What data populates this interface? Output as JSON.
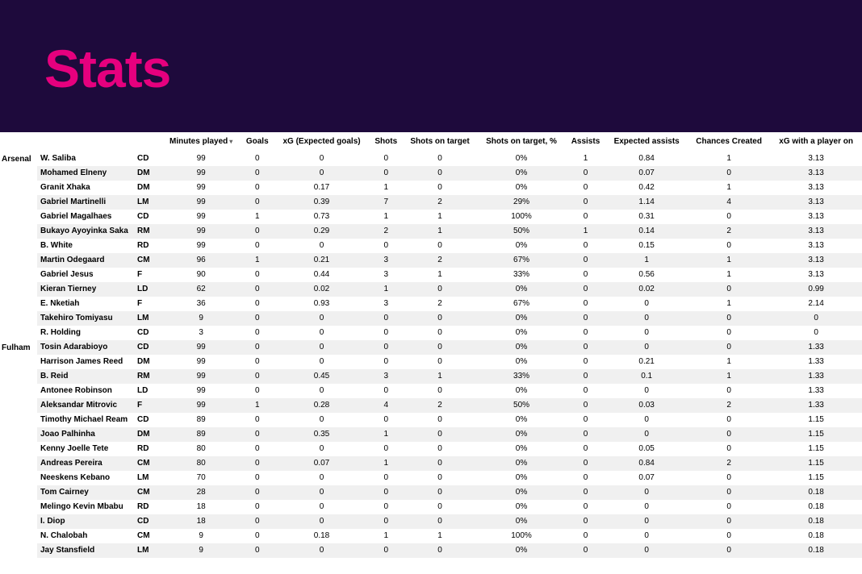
{
  "header": {
    "title": "Stats",
    "bg_color": "#1e0a3c",
    "title_color": "#e6007e"
  },
  "table": {
    "columns": [
      "Minutes played",
      "Goals",
      "xG (Expected goals)",
      "Shots",
      "Shots on target",
      "Shots on target, %",
      "Assists",
      "Expected assists",
      "Chances Created",
      "xG with a player on"
    ],
    "sorted_column_index": 0,
    "team_col_label": "",
    "name_col_label": "",
    "pos_col_label": "",
    "row_alt_bg": "#f0f0f0",
    "row_bg": "#ffffff",
    "groups": [
      {
        "team": "Arsenal",
        "rows": [
          {
            "name": "W. Saliba",
            "pos": "CD",
            "vals": [
              "99",
              "0",
              "0",
              "0",
              "0",
              "0%",
              "1",
              "0.84",
              "1",
              "3.13"
            ]
          },
          {
            "name": "Mohamed Elneny",
            "pos": "DM",
            "vals": [
              "99",
              "0",
              "0",
              "0",
              "0",
              "0%",
              "0",
              "0.07",
              "0",
              "3.13"
            ]
          },
          {
            "name": "Granit Xhaka",
            "pos": "DM",
            "vals": [
              "99",
              "0",
              "0.17",
              "1",
              "0",
              "0%",
              "0",
              "0.42",
              "1",
              "3.13"
            ]
          },
          {
            "name": "Gabriel Martinelli",
            "pos": "LM",
            "vals": [
              "99",
              "0",
              "0.39",
              "7",
              "2",
              "29%",
              "0",
              "1.14",
              "4",
              "3.13"
            ]
          },
          {
            "name": "Gabriel Magalhaes",
            "pos": "CD",
            "vals": [
              "99",
              "1",
              "0.73",
              "1",
              "1",
              "100%",
              "0",
              "0.31",
              "0",
              "3.13"
            ]
          },
          {
            "name": "Bukayo Ayoyinka Saka",
            "pos": "RM",
            "vals": [
              "99",
              "0",
              "0.29",
              "2",
              "1",
              "50%",
              "1",
              "0.14",
              "2",
              "3.13"
            ]
          },
          {
            "name": "B. White",
            "pos": "RD",
            "vals": [
              "99",
              "0",
              "0",
              "0",
              "0",
              "0%",
              "0",
              "0.15",
              "0",
              "3.13"
            ]
          },
          {
            "name": "Martin Odegaard",
            "pos": "CM",
            "vals": [
              "96",
              "1",
              "0.21",
              "3",
              "2",
              "67%",
              "0",
              "1",
              "1",
              "3.13"
            ]
          },
          {
            "name": "Gabriel Jesus",
            "pos": "F",
            "vals": [
              "90",
              "0",
              "0.44",
              "3",
              "1",
              "33%",
              "0",
              "0.56",
              "1",
              "3.13"
            ]
          },
          {
            "name": "Kieran Tierney",
            "pos": "LD",
            "vals": [
              "62",
              "0",
              "0.02",
              "1",
              "0",
              "0%",
              "0",
              "0.02",
              "0",
              "0.99"
            ]
          },
          {
            "name": "E. Nketiah",
            "pos": "F",
            "vals": [
              "36",
              "0",
              "0.93",
              "3",
              "2",
              "67%",
              "0",
              "0",
              "1",
              "2.14"
            ]
          },
          {
            "name": "Takehiro Tomiyasu",
            "pos": "LM",
            "vals": [
              "9",
              "0",
              "0",
              "0",
              "0",
              "0%",
              "0",
              "0",
              "0",
              "0"
            ]
          },
          {
            "name": "R. Holding",
            "pos": "CD",
            "vals": [
              "3",
              "0",
              "0",
              "0",
              "0",
              "0%",
              "0",
              "0",
              "0",
              "0"
            ]
          }
        ]
      },
      {
        "team": "Fulham",
        "rows": [
          {
            "name": "Tosin Adarabioyo",
            "pos": "CD",
            "vals": [
              "99",
              "0",
              "0",
              "0",
              "0",
              "0%",
              "0",
              "0",
              "0",
              "1.33"
            ]
          },
          {
            "name": "Harrison James Reed",
            "pos": "DM",
            "vals": [
              "99",
              "0",
              "0",
              "0",
              "0",
              "0%",
              "0",
              "0.21",
              "1",
              "1.33"
            ]
          },
          {
            "name": "B. Reid",
            "pos": "RM",
            "vals": [
              "99",
              "0",
              "0.45",
              "3",
              "1",
              "33%",
              "0",
              "0.1",
              "1",
              "1.33"
            ]
          },
          {
            "name": "Antonee Robinson",
            "pos": "LD",
            "vals": [
              "99",
              "0",
              "0",
              "0",
              "0",
              "0%",
              "0",
              "0",
              "0",
              "1.33"
            ]
          },
          {
            "name": "Aleksandar Mitrovic",
            "pos": "F",
            "vals": [
              "99",
              "1",
              "0.28",
              "4",
              "2",
              "50%",
              "0",
              "0.03",
              "2",
              "1.33"
            ]
          },
          {
            "name": "Timothy Michael Ream",
            "pos": "CD",
            "vals": [
              "89",
              "0",
              "0",
              "0",
              "0",
              "0%",
              "0",
              "0",
              "0",
              "1.15"
            ]
          },
          {
            "name": "Joao Palhinha",
            "pos": "DM",
            "vals": [
              "89",
              "0",
              "0.35",
              "1",
              "0",
              "0%",
              "0",
              "0",
              "0",
              "1.15"
            ]
          },
          {
            "name": "Kenny Joelle Tete",
            "pos": "RD",
            "vals": [
              "80",
              "0",
              "0",
              "0",
              "0",
              "0%",
              "0",
              "0.05",
              "0",
              "1.15"
            ]
          },
          {
            "name": "Andreas Pereira",
            "pos": "CM",
            "vals": [
              "80",
              "0",
              "0.07",
              "1",
              "0",
              "0%",
              "0",
              "0.84",
              "2",
              "1.15"
            ]
          },
          {
            "name": "Neeskens Kebano",
            "pos": "LM",
            "vals": [
              "70",
              "0",
              "0",
              "0",
              "0",
              "0%",
              "0",
              "0.07",
              "0",
              "1.15"
            ]
          },
          {
            "name": "Tom Cairney",
            "pos": "CM",
            "vals": [
              "28",
              "0",
              "0",
              "0",
              "0",
              "0%",
              "0",
              "0",
              "0",
              "0.18"
            ]
          },
          {
            "name": "Melingo Kevin Mbabu",
            "pos": "RD",
            "vals": [
              "18",
              "0",
              "0",
              "0",
              "0",
              "0%",
              "0",
              "0",
              "0",
              "0.18"
            ]
          },
          {
            "name": "I. Diop",
            "pos": "CD",
            "vals": [
              "18",
              "0",
              "0",
              "0",
              "0",
              "0%",
              "0",
              "0",
              "0",
              "0.18"
            ]
          },
          {
            "name": "N. Chalobah",
            "pos": "CM",
            "vals": [
              "9",
              "0",
              "0.18",
              "1",
              "1",
              "100%",
              "0",
              "0",
              "0",
              "0.18"
            ]
          },
          {
            "name": "Jay Stansfield",
            "pos": "LM",
            "vals": [
              "9",
              "0",
              "0",
              "0",
              "0",
              "0%",
              "0",
              "0",
              "0",
              "0.18"
            ]
          }
        ]
      }
    ]
  }
}
